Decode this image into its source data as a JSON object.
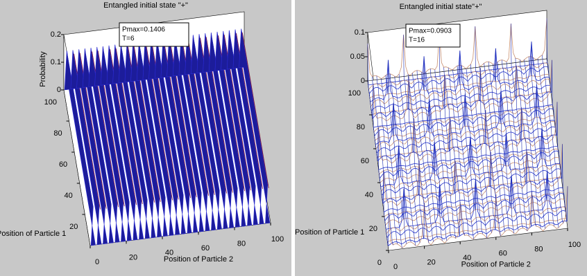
{
  "chart_data": [
    {
      "type": "mesh",
      "title": "Entangled initial state \"+\"",
      "annotation": [
        "Pmax=0.1406",
        "T=6"
      ],
      "xlabel": "Position of Particle 2",
      "ylabel": "Position of Particle 1",
      "zlabel": "Probability",
      "xlim": [
        0,
        100
      ],
      "xticks": [
        0,
        20,
        40,
        60,
        80,
        100
      ],
      "ylim": [
        0,
        100
      ],
      "yticks": [
        20,
        40,
        60,
        80,
        100
      ],
      "zlim": [
        0,
        0.2
      ],
      "zticks": [
        0,
        0.1,
        0.2
      ]
    },
    {
      "type": "mesh",
      "title": "Entangled initial state\"+\"",
      "annotation": [
        "Pmax=0.0903",
        "T=16"
      ],
      "xlabel": "Position of Particle 2",
      "ylabel": "Position of Particle 1",
      "xlim": [
        0,
        100
      ],
      "xticks": [
        0,
        20,
        40,
        60,
        80,
        100
      ],
      "ylim": [
        0,
        100
      ],
      "yticks": [
        0,
        20,
        40,
        60,
        80,
        100
      ],
      "zlim": [
        0,
        0.1
      ],
      "zticks": [
        0,
        0.05,
        0.1
      ]
    }
  ]
}
